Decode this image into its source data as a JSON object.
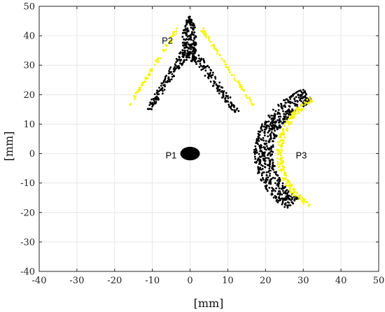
{
  "chart_data": {
    "type": "scatter",
    "title": "",
    "xlabel": "[mm]",
    "ylabel": "[mm]",
    "xlim": [
      -40,
      50
    ],
    "ylim": [
      -40,
      50
    ],
    "xticks": [
      -40,
      -30,
      -20,
      -10,
      0,
      10,
      20,
      30,
      40,
      50
    ],
    "yticks": [
      -40,
      -30,
      -20,
      -10,
      0,
      10,
      20,
      30,
      40,
      50
    ],
    "grid": true,
    "colors": {
      "black_series": "#000000",
      "yellow_series": "#f5f500",
      "grid": "#e6e6e6",
      "axes": "#262626"
    },
    "annotations": [
      {
        "text": "P1",
        "x": -6.5,
        "y": -0.5
      },
      {
        "text": "P2",
        "x": -7.5,
        "y": 38.5
      },
      {
        "text": "P3",
        "x": 28,
        "y": -0.5
      }
    ],
    "series": [
      {
        "color": "#000000",
        "shapes": [
          {
            "kind": "disc",
            "center": [
              0,
              0
            ],
            "rx": 2.6,
            "ry": 2.3
          },
          {
            "kind": "stem",
            "x_center": -0.2,
            "y_range": [
              31,
              46.5
            ],
            "half_width": 1.8,
            "count": 180
          },
          {
            "kind": "branch",
            "from": [
              -11,
              15
            ],
            "to": [
              -1.5,
              34
            ],
            "spread": 1.3,
            "count": 130
          },
          {
            "kind": "branch",
            "from": [
              12.5,
              14
            ],
            "to": [
              1.5,
              33
            ],
            "spread": 1.4,
            "count": 130
          },
          {
            "kind": "arc",
            "center": [
              42,
              0
            ],
            "radius_range": [
              20,
              25
            ],
            "angle_deg_range": [
              118,
              230
            ],
            "count": 620
          }
        ]
      },
      {
        "color": "#f5f500",
        "shapes": [
          {
            "kind": "branch",
            "from": [
              -16,
              16.5
            ],
            "to": [
              -3,
              43
            ],
            "spread": 0.5,
            "count": 75
          },
          {
            "kind": "branch",
            "from": [
              17,
              16
            ],
            "to": [
              3,
              42.5
            ],
            "spread": 0.5,
            "count": 75
          },
          {
            "kind": "arc",
            "center": [
              48,
              0
            ],
            "radius_range": [
              23.5,
              25
            ],
            "angle_deg_range": [
              130,
              228
            ],
            "count": 200
          }
        ]
      }
    ]
  }
}
